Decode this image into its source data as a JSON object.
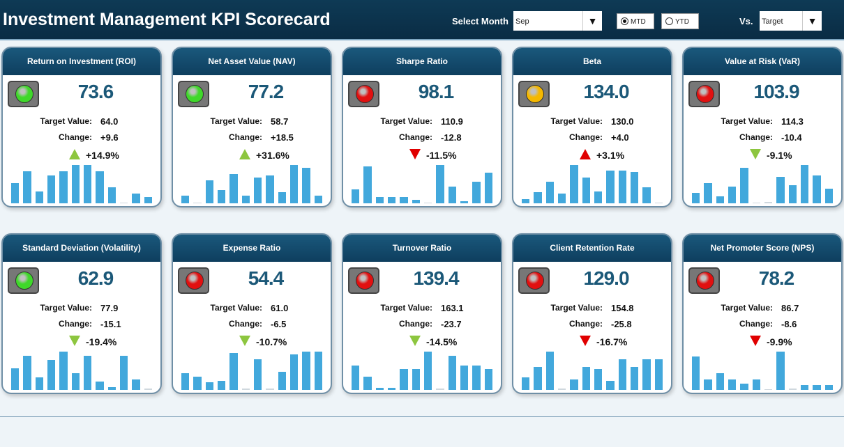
{
  "header": {
    "title": "Investment Management KPI Scorecard",
    "select_month_label": "Select Month",
    "month": "Sep",
    "mtd": "MTD",
    "ytd": "YTD",
    "selected_mode": "MTD",
    "vs_label": "Vs.",
    "vs_value": "Target",
    "dropdown_arrow": "▼"
  },
  "labels": {
    "target": "Target Value:",
    "change": "Change:"
  },
  "colors": {
    "green": "#8dc63f",
    "red": "#e00000",
    "yellow": "#f5b800",
    "light_green": "#3fd82a",
    "light_red": "#e11010",
    "bar": "#42a8dc"
  },
  "cards": [
    {
      "title": "Return on Investment (ROI)",
      "value": "73.6",
      "target": "64.0",
      "change": "+9.6",
      "pct": "+14.9%",
      "dir": "up",
      "arrow_color": "green",
      "light": "green",
      "bars": [
        25,
        40,
        15,
        35,
        40,
        48,
        48,
        40,
        20,
        1,
        12,
        8
      ]
    },
    {
      "title": "Net Asset Value (NAV)",
      "value": "77.2",
      "target": "58.7",
      "change": "+18.5",
      "pct": "+31.6%",
      "dir": "up",
      "arrow_color": "green",
      "light": "green",
      "bars": [
        10,
        1,
        30,
        17,
        38,
        10,
        34,
        36,
        15,
        50,
        46,
        10
      ]
    },
    {
      "title": "Sharpe Ratio",
      "value": "98.1",
      "target": "110.9",
      "change": "-12.8",
      "pct": "-11.5%",
      "dir": "down",
      "arrow_color": "red",
      "light": "red",
      "bars": [
        18,
        48,
        8,
        8,
        8,
        5,
        1,
        50,
        22,
        3,
        28,
        40
      ]
    },
    {
      "title": "Beta",
      "value": "134.0",
      "target": "130.0",
      "change": "+4.0",
      "pct": "+3.1%",
      "dir": "up",
      "arrow_color": "red",
      "light": "yellow",
      "bars": [
        5,
        14,
        27,
        12,
        48,
        32,
        15,
        41,
        41,
        39,
        20,
        1
      ]
    },
    {
      "title": "Value at Risk (VaR)",
      "value": "103.9",
      "target": "114.3",
      "change": "-10.4",
      "pct": "-9.1%",
      "dir": "down",
      "arrow_color": "green",
      "light": "red",
      "bars": [
        14,
        27,
        9,
        23,
        48,
        1,
        2,
        36,
        25,
        52,
        38,
        20
      ]
    },
    {
      "title": "Standard Deviation (Volatility)",
      "value": "62.9",
      "target": "77.9",
      "change": "-15.1",
      "pct": "-19.4%",
      "dir": "down",
      "arrow_color": "green",
      "light": "green",
      "bars": [
        25,
        40,
        15,
        35,
        45,
        20,
        40,
        10,
        3,
        40,
        12,
        2
      ]
    },
    {
      "title": "Expense Ratio",
      "value": "54.4",
      "target": "61.0",
      "change": "-6.5",
      "pct": "-10.7%",
      "dir": "down",
      "arrow_color": "green",
      "light": "red",
      "bars": [
        22,
        17,
        10,
        12,
        48,
        2,
        40,
        2,
        24,
        46,
        50,
        50
      ]
    },
    {
      "title": "Turnover Ratio",
      "value": "139.4",
      "target": "163.1",
      "change": "-23.7",
      "pct": "-14.5%",
      "dir": "down",
      "arrow_color": "green",
      "light": "red",
      "bars": [
        32,
        17,
        3,
        3,
        27,
        27,
        50,
        2,
        45,
        32,
        32,
        27
      ]
    },
    {
      "title": "Client Retention Rate",
      "value": "129.0",
      "target": "154.8",
      "change": "-25.8",
      "pct": "-16.7%",
      "dir": "down",
      "arrow_color": "red",
      "light": "red",
      "bars": [
        16,
        30,
        50,
        2,
        14,
        30,
        27,
        12,
        40,
        30,
        40,
        40
      ]
    },
    {
      "title": "Net Promoter Score (NPS)",
      "value": "78.2",
      "target": "86.7",
      "change": "-8.6",
      "pct": "-9.9%",
      "dir": "down",
      "arrow_color": "red",
      "light": "red",
      "bars": [
        44,
        14,
        22,
        14,
        8,
        14,
        1,
        50,
        2,
        6,
        6,
        6
      ]
    }
  ]
}
